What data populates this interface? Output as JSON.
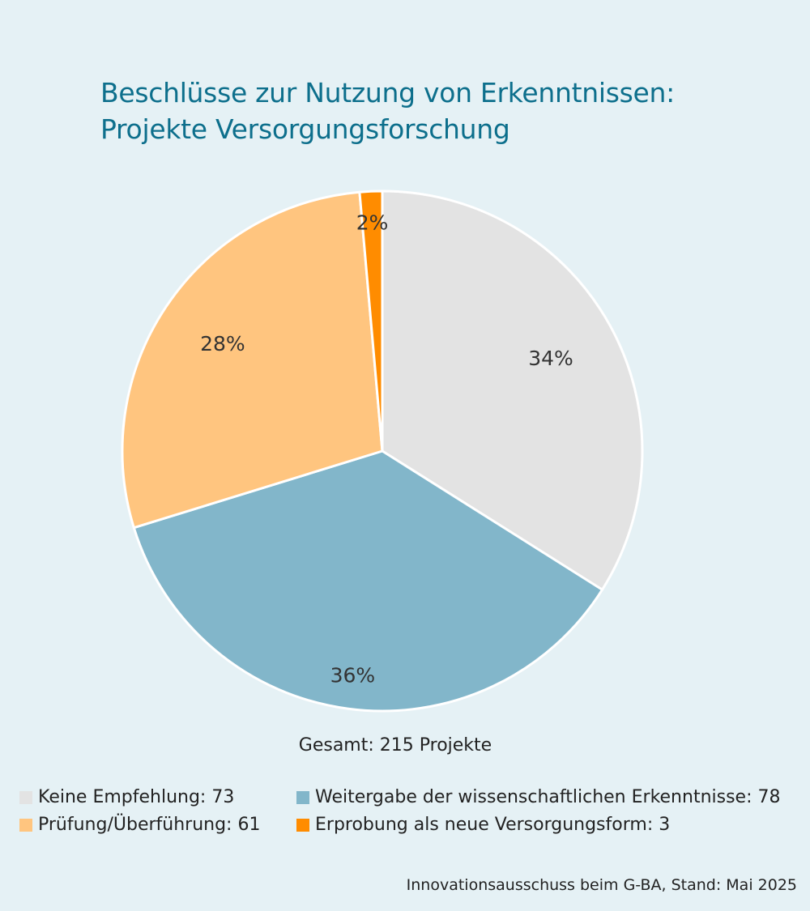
{
  "chart_data": {
    "type": "pie",
    "title_lines": [
      "Beschlüsse zur Nutzung von Erkenntnissen:",
      "Projekte Versorgungsforschung"
    ],
    "slices": [
      {
        "label": "Keine Empfehlung",
        "value": 73,
        "percent_label": "34%",
        "color": "#e3e3e3"
      },
      {
        "label": "Weitergabe der wissenschaftlichen Erkenntnisse",
        "value": 78,
        "percent_label": "36%",
        "color": "#82b6ca"
      },
      {
        "label": "Prüfung/Überführung",
        "value": 61,
        "percent_label": "28%",
        "color": "#ffc57f"
      },
      {
        "label": "Erprobung als neue Versorgungsform",
        "value": 3,
        "percent_label": "2%",
        "color": "#ff8c00"
      }
    ],
    "total_label": "Gesamt: 215 Projekte",
    "legend": [
      "Keine Empfehlung: 73",
      "Weitergabe der wissenschaftlichen Erkenntnisse: 78",
      "Prüfung/Überführung: 61",
      "Erprobung als neue Versorgungsform: 3"
    ],
    "legend_placement": "bottom",
    "source": "Innovationsausschuss beim G-BA, Stand: Mai 2025"
  }
}
